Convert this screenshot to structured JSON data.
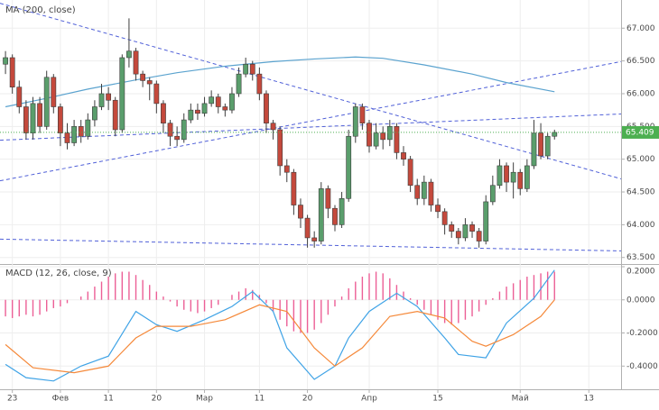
{
  "chart_data": [
    {
      "type": "candlestick",
      "title": "MA (200, close)",
      "xlim": [
        -0.8,
        89.7
      ],
      "xticks": [
        {
          "value": 1,
          "label": "23"
        },
        {
          "value": 8,
          "label": "Фев"
        },
        {
          "value": 15,
          "label": "11"
        },
        {
          "value": 22,
          "label": "20"
        },
        {
          "value": 29,
          "label": "Мар"
        },
        {
          "value": 37,
          "label": "11"
        },
        {
          "value": 44,
          "label": "20"
        },
        {
          "value": 53,
          "label": "Апр"
        },
        {
          "value": 63,
          "label": "15"
        },
        {
          "value": 75,
          "label": "Май"
        },
        {
          "value": 85,
          "label": "13"
        }
      ],
      "ylim": [
        63.4,
        67.43
      ],
      "yticks": [
        {
          "value": 63.5,
          "label": "63.500"
        },
        {
          "value": 64,
          "label": "64.000"
        },
        {
          "value": 64.5,
          "label": "64.500"
        },
        {
          "value": 65,
          "label": "65.000"
        },
        {
          "value": 65.5,
          "label": "65.500"
        },
        {
          "value": 66,
          "label": "66.000"
        },
        {
          "value": 66.5,
          "label": "66.500"
        },
        {
          "value": 67,
          "label": "67.000"
        }
      ],
      "grid": true,
      "up_color": "#5a9e6c",
      "down_color": "#c4493c",
      "last_price_color": "#4caf50",
      "open": [
        66.45,
        66.55,
        66.1,
        65.8,
        65.4,
        65.85,
        65.5,
        66.25,
        65.8,
        65.4,
        65.25,
        65.5,
        65.35,
        65.6,
        65.8,
        66.0,
        65.9,
        65.45,
        66.55,
        66.65,
        66.3,
        66.2,
        66.15,
        65.85,
        65.55,
        65.35,
        65.3,
        65.6,
        65.75,
        65.7,
        65.85,
        65.95,
        65.8,
        65.75,
        66.0,
        66.3,
        66.45,
        66.3,
        66.0,
        65.55,
        65.45,
        64.9,
        64.8,
        64.3,
        64.1,
        63.8,
        63.75,
        64.55,
        64.25,
        64.0,
        64.4,
        65.35,
        65.8,
        65.55,
        65.2,
        65.4,
        65.3,
        65.5,
        65.1,
        65.0,
        64.6,
        64.4,
        64.65,
        64.3,
        64.2,
        64.0,
        63.9,
        63.8,
        64.0,
        63.9,
        63.75,
        64.35,
        64.6,
        64.9,
        64.65,
        64.8,
        64.55,
        64.9,
        65.4,
        65.05,
        65.35
      ],
      "high": [
        66.65,
        66.6,
        66.2,
        65.9,
        65.95,
        65.95,
        66.35,
        66.3,
        65.85,
        65.55,
        65.6,
        65.6,
        65.7,
        65.9,
        66.15,
        66.1,
        65.95,
        66.6,
        67.15,
        66.7,
        66.35,
        66.25,
        66.2,
        65.9,
        65.6,
        65.5,
        65.7,
        65.85,
        65.85,
        65.95,
        66.05,
        66.0,
        65.85,
        66.1,
        66.4,
        66.55,
        66.5,
        66.4,
        66.05,
        65.6,
        65.5,
        65.0,
        64.85,
        64.4,
        64.15,
        63.9,
        64.65,
        64.6,
        64.3,
        64.5,
        65.45,
        65.85,
        65.85,
        65.6,
        65.55,
        65.5,
        65.6,
        65.55,
        65.2,
        65.05,
        64.7,
        64.75,
        64.7,
        64.4,
        64.25,
        64.05,
        63.95,
        64.1,
        64.05,
        63.95,
        64.45,
        64.75,
        65.0,
        64.95,
        64.95,
        64.85,
        65.0,
        65.6,
        65.55,
        65.4,
        65.45
      ],
      "low": [
        66.3,
        66.0,
        65.7,
        65.3,
        65.3,
        65.4,
        65.45,
        65.7,
        65.2,
        65.15,
        65.2,
        65.25,
        65.3,
        65.5,
        65.75,
        65.75,
        65.35,
        65.4,
        66.4,
        66.2,
        66.1,
        65.9,
        65.7,
        65.4,
        65.2,
        65.2,
        65.25,
        65.55,
        65.6,
        65.65,
        65.8,
        65.7,
        65.65,
        65.7,
        65.95,
        66.25,
        66.2,
        65.9,
        65.4,
        65.3,
        64.75,
        64.65,
        64.15,
        63.95,
        63.65,
        63.65,
        63.7,
        64.1,
        63.9,
        63.95,
        64.35,
        65.25,
        65.45,
        65.1,
        65.15,
        65.15,
        65.2,
        65.0,
        64.9,
        64.5,
        64.3,
        64.3,
        64.2,
        64.1,
        63.85,
        63.8,
        63.7,
        63.75,
        63.8,
        63.65,
        63.7,
        64.3,
        64.55,
        64.5,
        64.4,
        64.45,
        64.5,
        64.85,
        65.0,
        65.0,
        65.3
      ],
      "close": [
        66.55,
        66.1,
        65.8,
        65.4,
        65.85,
        65.5,
        66.25,
        65.8,
        65.4,
        65.25,
        65.5,
        65.35,
        65.6,
        65.8,
        66.0,
        65.9,
        65.45,
        66.55,
        66.65,
        66.3,
        66.2,
        66.15,
        65.85,
        65.55,
        65.35,
        65.3,
        65.6,
        65.75,
        65.7,
        65.85,
        65.95,
        65.8,
        65.75,
        66.0,
        66.3,
        66.45,
        66.3,
        66.0,
        65.55,
        65.45,
        64.9,
        64.8,
        64.3,
        64.1,
        63.8,
        63.75,
        64.55,
        64.25,
        64.0,
        64.4,
        65.35,
        65.8,
        65.55,
        65.2,
        65.4,
        65.3,
        65.5,
        65.1,
        65.0,
        64.6,
        64.4,
        64.65,
        64.3,
        64.2,
        64.0,
        63.9,
        63.8,
        64.0,
        63.9,
        63.75,
        64.35,
        64.6,
        64.9,
        64.65,
        64.8,
        64.55,
        64.9,
        65.4,
        65.05,
        65.35,
        65.409
      ],
      "series": [
        {
          "color": "#5ba3cf",
          "x": [
            0,
            6,
            12,
            19,
            25,
            32,
            39,
            45,
            51,
            55,
            61,
            68,
            73,
            80
          ],
          "values": [
            65.8,
            65.93,
            66.07,
            66.21,
            66.32,
            66.42,
            66.49,
            66.53,
            66.56,
            66.54,
            66.44,
            66.3,
            66.17,
            66.03
          ]
        }
      ],
      "trendline_color": "#5060d8",
      "trendlines": [
        {
          "x": [
            -0.8,
            89.7
          ],
          "values": [
            67.38,
            64.7
          ]
        },
        {
          "x": [
            -0.8,
            89.7
          ],
          "values": [
            64.67,
            66.49
          ]
        },
        {
          "x": [
            -0.8,
            89.7
          ],
          "values": [
            65.29,
            65.69
          ]
        },
        {
          "x": [
            -0.8,
            89.7
          ],
          "values": [
            63.78,
            63.6
          ]
        }
      ]
    },
    {
      "type": "macd",
      "title": "MACD (12, 26, close, 9)",
      "xlim": [
        -0.8,
        89.7
      ],
      "ylim": [
        -0.54,
        0.2
      ],
      "yticks": [
        {
          "value": 0.2,
          "label": "0.2000"
        },
        {
          "value": 0,
          "label": "0.0000"
        },
        {
          "value": -0.2,
          "label": "-0.2000"
        },
        {
          "value": -0.4,
          "label": "-0.4000"
        }
      ],
      "histogram_color": "#ec5f96",
      "histogram": [
        -0.1,
        -0.11,
        -0.1,
        -0.09,
        -0.1,
        -0.09,
        -0.07,
        -0.05,
        -0.04,
        -0.02,
        0.0,
        0.02,
        0.05,
        0.08,
        0.11,
        0.14,
        0.16,
        0.17,
        0.17,
        0.15,
        0.12,
        0.09,
        0.05,
        0.02,
        -0.01,
        -0.04,
        -0.06,
        -0.07,
        -0.08,
        -0.07,
        -0.05,
        -0.03,
        0.0,
        0.03,
        0.05,
        0.07,
        0.06,
        0.03,
        -0.02,
        -0.07,
        -0.12,
        -0.16,
        -0.19,
        -0.2,
        -0.2,
        -0.18,
        -0.14,
        -0.09,
        -0.04,
        0.02,
        0.07,
        0.11,
        0.14,
        0.16,
        0.17,
        0.16,
        0.13,
        0.09,
        0.05,
        0.01,
        -0.03,
        -0.06,
        -0.09,
        -0.12,
        -0.14,
        -0.15,
        -0.14,
        -0.12,
        -0.1,
        -0.07,
        -0.03,
        0.01,
        0.05,
        0.08,
        0.1,
        0.12,
        0.14,
        0.15,
        0.16,
        0.17,
        0.17
      ],
      "series": [
        {
          "color": "#3fa3e6",
          "x": [
            0,
            3,
            7,
            11,
            15,
            19,
            22,
            25,
            29,
            33,
            36,
            39,
            41,
            45,
            48,
            50,
            53,
            57,
            60,
            64,
            66,
            70,
            73,
            77,
            80
          ],
          "values": [
            -0.39,
            -0.47,
            -0.49,
            -0.4,
            -0.34,
            -0.07,
            -0.15,
            -0.19,
            -0.12,
            -0.04,
            0.05,
            -0.07,
            -0.29,
            -0.48,
            -0.4,
            -0.23,
            -0.07,
            0.04,
            -0.04,
            -0.23,
            -0.33,
            -0.35,
            -0.14,
            0.01,
            0.18
          ]
        },
        {
          "color": "#f5893a",
          "x": [
            0,
            4,
            10,
            15,
            19,
            22,
            27,
            32,
            37,
            41,
            45,
            48,
            52,
            56,
            60,
            64,
            68,
            70,
            74,
            78,
            80
          ],
          "values": [
            -0.27,
            -0.41,
            -0.44,
            -0.4,
            -0.23,
            -0.16,
            -0.16,
            -0.12,
            -0.03,
            -0.07,
            -0.29,
            -0.4,
            -0.29,
            -0.1,
            -0.07,
            -0.11,
            -0.25,
            -0.28,
            -0.21,
            -0.1,
            0.0
          ]
        }
      ]
    }
  ]
}
